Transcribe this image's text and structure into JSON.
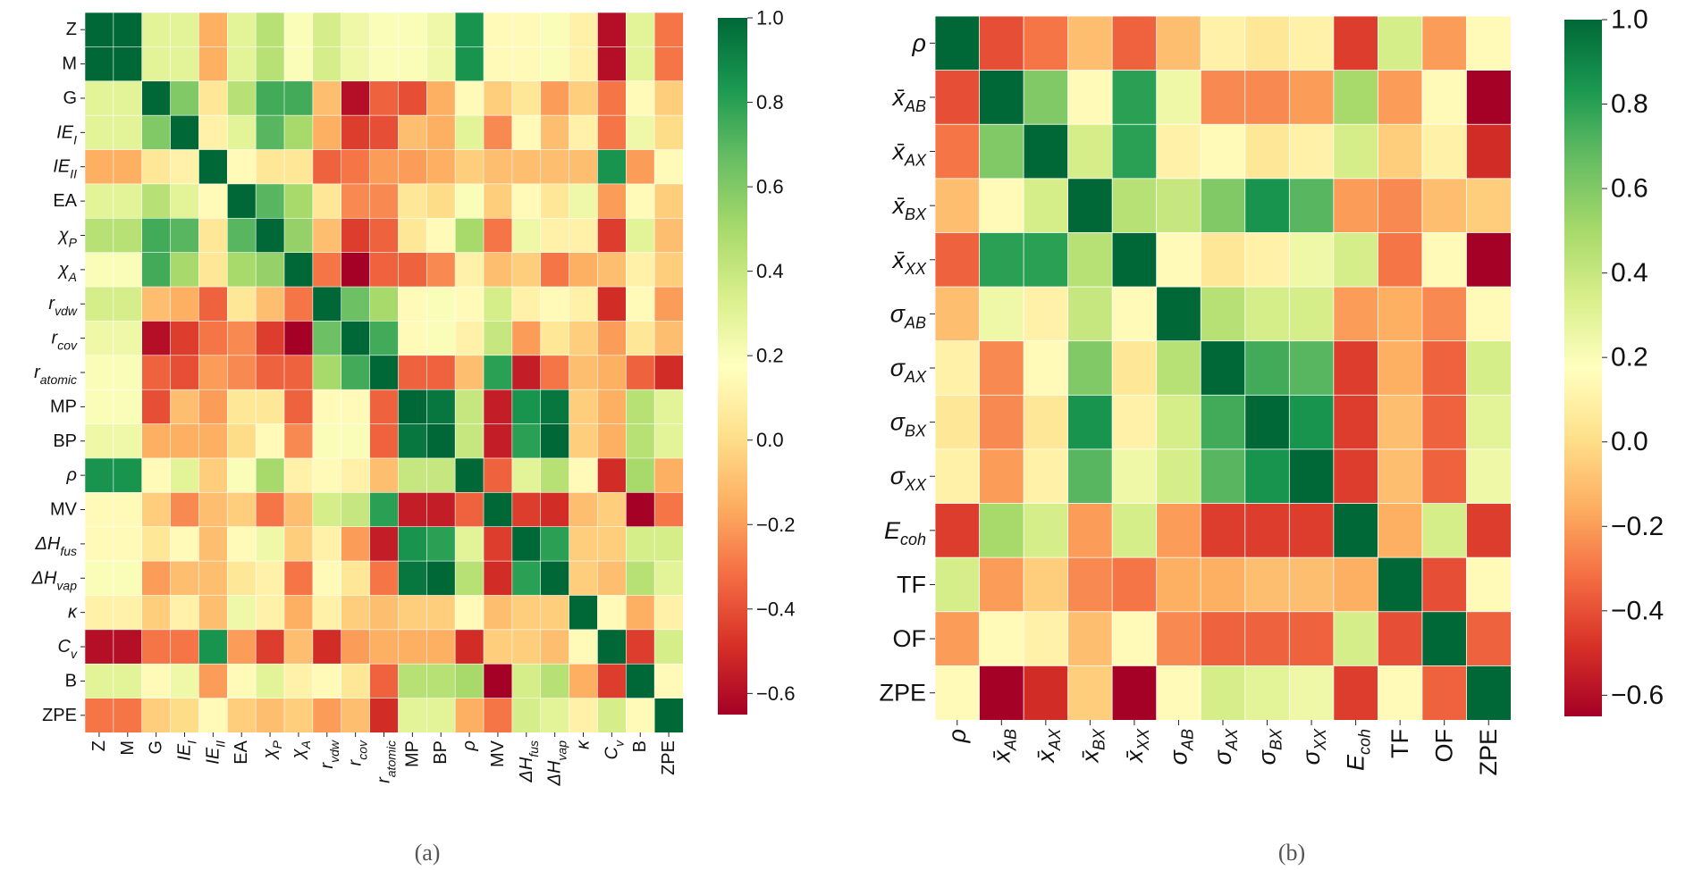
{
  "panels": [
    {
      "caption": "(a)"
    },
    {
      "caption": "(b)"
    }
  ],
  "chart_data": [
    {
      "type": "heatmap",
      "title": "",
      "colormap": "RdYlGn",
      "vmin": -0.65,
      "vmax": 1.0,
      "colorbar_ticks": [
        "1.0",
        "0.8",
        "0.6",
        "0.4",
        "0.2",
        "0.0",
        "−0.2",
        "−0.4",
        "−0.6"
      ],
      "colorbar_tick_values": [
        1.0,
        0.8,
        0.6,
        0.4,
        0.2,
        0.0,
        -0.2,
        -0.4,
        -0.6
      ],
      "labels": [
        {
          "b": "Z",
          "s": ""
        },
        {
          "b": "M",
          "s": ""
        },
        {
          "b": "G",
          "s": ""
        },
        {
          "b": "IE",
          "s": "I",
          "it": true
        },
        {
          "b": "IE",
          "s": "II",
          "it": true
        },
        {
          "b": "EA",
          "s": ""
        },
        {
          "b": "χ",
          "s": "P",
          "it": true
        },
        {
          "b": "χ",
          "s": "A",
          "it": true
        },
        {
          "b": "r",
          "s": "vdw",
          "it": true
        },
        {
          "b": "r",
          "s": "cov",
          "it": true
        },
        {
          "b": "r",
          "s": "atomic",
          "it": true
        },
        {
          "b": "MP",
          "s": ""
        },
        {
          "b": "BP",
          "s": ""
        },
        {
          "b": "ρ",
          "s": "",
          "it": true
        },
        {
          "b": "MV",
          "s": ""
        },
        {
          "b": "ΔH",
          "s": "fus",
          "it": true
        },
        {
          "b": "ΔH",
          "s": "vap",
          "it": true
        },
        {
          "b": "κ",
          "s": "",
          "it": true
        },
        {
          "b": "C",
          "s": "v",
          "it": true
        },
        {
          "b": "B",
          "s": ""
        },
        {
          "b": "ZPE",
          "s": ""
        }
      ],
      "matrix": [
        [
          1.0,
          1.0,
          0.3,
          0.3,
          -0.15,
          0.3,
          0.45,
          0.2,
          0.35,
          0.25,
          0.2,
          0.2,
          0.25,
          0.85,
          0.15,
          0.15,
          0.2,
          0.1,
          -0.6,
          0.3,
          -0.3
        ],
        [
          1.0,
          1.0,
          0.3,
          0.3,
          -0.15,
          0.3,
          0.45,
          0.2,
          0.35,
          0.25,
          0.2,
          0.2,
          0.25,
          0.85,
          0.15,
          0.15,
          0.2,
          0.1,
          -0.6,
          0.3,
          -0.3
        ],
        [
          0.3,
          0.3,
          1.0,
          0.6,
          0.05,
          0.45,
          0.75,
          0.75,
          -0.1,
          -0.6,
          -0.35,
          -0.4,
          -0.15,
          0.15,
          -0.05,
          0.05,
          -0.2,
          -0.05,
          -0.3,
          0.15,
          -0.05
        ],
        [
          0.3,
          0.3,
          0.6,
          1.0,
          0.1,
          0.3,
          0.7,
          0.5,
          -0.15,
          -0.45,
          -0.4,
          -0.1,
          -0.15,
          0.3,
          -0.25,
          0.15,
          -0.1,
          0.1,
          -0.3,
          0.25,
          0.0
        ],
        [
          -0.15,
          -0.15,
          0.05,
          0.1,
          1.0,
          0.15,
          0.05,
          0.05,
          -0.35,
          -0.3,
          -0.2,
          -0.2,
          -0.15,
          -0.05,
          -0.1,
          -0.1,
          -0.1,
          -0.1,
          0.85,
          -0.2,
          0.15
        ],
        [
          0.3,
          0.3,
          0.45,
          0.3,
          0.15,
          1.0,
          0.7,
          0.5,
          0.05,
          -0.25,
          -0.25,
          0.05,
          0.0,
          0.2,
          -0.05,
          0.15,
          0.05,
          0.25,
          -0.2,
          0.15,
          -0.05
        ],
        [
          0.45,
          0.45,
          0.75,
          0.7,
          0.05,
          0.7,
          1.0,
          0.55,
          -0.1,
          -0.45,
          -0.35,
          0.05,
          0.15,
          0.5,
          -0.3,
          0.25,
          0.1,
          0.1,
          -0.45,
          0.3,
          -0.1
        ],
        [
          0.2,
          0.2,
          0.75,
          0.5,
          0.05,
          0.5,
          0.55,
          1.0,
          -0.3,
          -0.65,
          -0.35,
          -0.35,
          -0.25,
          0.1,
          -0.1,
          -0.05,
          -0.3,
          -0.15,
          -0.1,
          0.1,
          -0.05
        ],
        [
          0.35,
          0.35,
          -0.1,
          -0.15,
          -0.35,
          0.05,
          -0.1,
          -0.3,
          1.0,
          0.65,
          0.5,
          0.15,
          0.2,
          0.15,
          0.35,
          0.1,
          0.15,
          0.1,
          -0.5,
          0.15,
          -0.2
        ],
        [
          0.25,
          0.25,
          -0.6,
          -0.45,
          -0.3,
          -0.25,
          -0.45,
          -0.65,
          0.65,
          1.0,
          0.75,
          0.15,
          0.2,
          0.1,
          0.4,
          -0.2,
          0.05,
          -0.05,
          -0.2,
          0.05,
          -0.1
        ],
        [
          0.2,
          0.2,
          -0.35,
          -0.4,
          -0.2,
          -0.25,
          -0.35,
          -0.35,
          0.5,
          0.75,
          1.0,
          -0.35,
          -0.35,
          -0.1,
          0.8,
          -0.55,
          -0.3,
          -0.1,
          -0.15,
          -0.35,
          -0.5
        ],
        [
          0.2,
          0.2,
          -0.4,
          -0.1,
          -0.2,
          0.05,
          0.05,
          -0.35,
          0.15,
          0.15,
          -0.35,
          1.0,
          0.95,
          0.4,
          -0.55,
          0.85,
          0.95,
          -0.05,
          -0.15,
          0.45,
          0.3
        ],
        [
          0.25,
          0.25,
          -0.15,
          -0.15,
          -0.15,
          0.0,
          0.15,
          -0.25,
          0.2,
          0.2,
          -0.35,
          0.95,
          1.0,
          0.4,
          -0.55,
          0.8,
          1.0,
          -0.05,
          -0.15,
          0.45,
          0.3
        ],
        [
          0.85,
          0.85,
          0.15,
          0.3,
          -0.05,
          0.2,
          0.5,
          0.1,
          0.15,
          0.1,
          -0.1,
          0.4,
          0.4,
          1.0,
          -0.35,
          0.3,
          0.45,
          0.15,
          -0.5,
          0.5,
          -0.15
        ],
        [
          0.15,
          0.15,
          -0.05,
          -0.25,
          -0.1,
          -0.05,
          -0.3,
          -0.1,
          0.35,
          0.4,
          0.8,
          -0.55,
          -0.55,
          -0.35,
          1.0,
          -0.45,
          -0.5,
          -0.1,
          -0.05,
          -0.65,
          -0.3
        ],
        [
          0.15,
          0.15,
          0.05,
          0.15,
          -0.1,
          0.15,
          0.25,
          -0.05,
          0.1,
          -0.2,
          -0.55,
          0.85,
          0.8,
          0.3,
          -0.45,
          1.0,
          0.8,
          -0.05,
          -0.05,
          0.35,
          0.35
        ],
        [
          0.2,
          0.2,
          -0.2,
          -0.1,
          -0.1,
          0.05,
          0.1,
          -0.3,
          0.15,
          0.05,
          -0.3,
          0.95,
          1.0,
          0.45,
          -0.5,
          0.8,
          1.0,
          -0.05,
          -0.1,
          0.45,
          0.3
        ],
        [
          0.1,
          0.1,
          -0.05,
          0.1,
          -0.1,
          0.25,
          0.1,
          -0.15,
          0.1,
          -0.05,
          -0.1,
          -0.05,
          -0.05,
          0.15,
          -0.1,
          -0.05,
          -0.05,
          1.0,
          0.15,
          -0.15,
          0.1
        ],
        [
          -0.6,
          -0.6,
          -0.3,
          -0.3,
          0.85,
          -0.2,
          -0.45,
          -0.1,
          -0.5,
          -0.2,
          -0.15,
          -0.15,
          -0.15,
          -0.5,
          -0.05,
          -0.05,
          -0.1,
          0.15,
          1.0,
          -0.45,
          0.35
        ],
        [
          0.3,
          0.3,
          0.15,
          0.25,
          -0.2,
          0.15,
          0.3,
          0.1,
          0.15,
          0.05,
          -0.35,
          0.45,
          0.45,
          0.5,
          -0.65,
          0.35,
          0.45,
          -0.15,
          -0.45,
          1.0,
          0.15
        ],
        [
          -0.3,
          -0.3,
          -0.05,
          0.0,
          0.15,
          -0.05,
          -0.1,
          -0.05,
          -0.2,
          -0.1,
          -0.5,
          0.3,
          0.3,
          -0.15,
          -0.3,
          0.35,
          0.3,
          0.1,
          0.35,
          0.15,
          1.0
        ]
      ]
    },
    {
      "type": "heatmap",
      "title": "",
      "colormap": "RdYlGn",
      "vmin": -0.65,
      "vmax": 1.0,
      "colorbar_ticks": [
        "1.0",
        "0.8",
        "0.6",
        "0.4",
        "0.2",
        "0.0",
        "−0.2",
        "−0.4",
        "−0.6"
      ],
      "colorbar_tick_values": [
        1.0,
        0.8,
        0.6,
        0.4,
        0.2,
        0.0,
        -0.2,
        -0.4,
        -0.6
      ],
      "labels": [
        {
          "b": "ρ",
          "s": "",
          "it": true
        },
        {
          "b": "x̄",
          "s": "AB",
          "it": true
        },
        {
          "b": "x̄",
          "s": "AX",
          "it": true
        },
        {
          "b": "x̄",
          "s": "BX",
          "it": true
        },
        {
          "b": "x̄",
          "s": "XX",
          "it": true
        },
        {
          "b": "σ",
          "s": "AB",
          "it": true
        },
        {
          "b": "σ",
          "s": "AX",
          "it": true
        },
        {
          "b": "σ",
          "s": "BX",
          "it": true
        },
        {
          "b": "σ",
          "s": "XX",
          "it": true
        },
        {
          "b": "E",
          "s": "coh",
          "it": true
        },
        {
          "b": "TF",
          "s": ""
        },
        {
          "b": "OF",
          "s": ""
        },
        {
          "b": "ZPE",
          "s": ""
        }
      ],
      "matrix": [
        [
          1.0,
          -0.4,
          -0.3,
          -0.1,
          -0.35,
          -0.1,
          0.1,
          0.05,
          0.1,
          -0.45,
          0.35,
          -0.2,
          0.15
        ],
        [
          -0.4,
          1.0,
          0.6,
          0.15,
          0.8,
          0.25,
          -0.25,
          -0.25,
          -0.2,
          0.5,
          -0.2,
          0.15,
          -0.65
        ],
        [
          -0.3,
          0.6,
          1.0,
          0.35,
          0.8,
          0.1,
          0.15,
          0.05,
          0.1,
          0.35,
          -0.05,
          0.1,
          -0.5
        ],
        [
          -0.1,
          0.15,
          0.35,
          1.0,
          0.45,
          0.4,
          0.6,
          0.85,
          0.7,
          -0.2,
          -0.25,
          -0.1,
          -0.05
        ],
        [
          -0.35,
          0.8,
          0.8,
          0.45,
          1.0,
          0.15,
          0.05,
          0.1,
          0.25,
          0.35,
          -0.3,
          0.15,
          -0.65
        ],
        [
          -0.1,
          0.25,
          0.1,
          0.4,
          0.15,
          1.0,
          0.45,
          0.35,
          0.35,
          -0.2,
          -0.15,
          -0.25,
          0.15
        ],
        [
          0.1,
          -0.25,
          0.15,
          0.6,
          0.05,
          0.45,
          1.0,
          0.75,
          0.7,
          -0.45,
          -0.15,
          -0.35,
          0.35
        ],
        [
          0.05,
          -0.25,
          0.05,
          0.85,
          0.1,
          0.35,
          0.75,
          1.0,
          0.85,
          -0.45,
          -0.1,
          -0.35,
          0.3
        ],
        [
          0.1,
          -0.2,
          0.1,
          0.7,
          0.25,
          0.35,
          0.7,
          0.85,
          1.0,
          -0.45,
          -0.1,
          -0.35,
          0.25
        ],
        [
          -0.45,
          0.5,
          0.35,
          -0.2,
          0.35,
          -0.2,
          -0.45,
          -0.45,
          -0.45,
          1.0,
          -0.15,
          0.35,
          -0.45
        ],
        [
          0.35,
          -0.2,
          -0.05,
          -0.25,
          -0.3,
          -0.15,
          -0.15,
          -0.1,
          -0.1,
          -0.15,
          1.0,
          -0.4,
          0.15
        ],
        [
          -0.2,
          0.15,
          0.1,
          -0.1,
          0.15,
          -0.25,
          -0.35,
          -0.35,
          -0.35,
          0.35,
          -0.4,
          1.0,
          -0.35
        ],
        [
          0.15,
          -0.65,
          -0.5,
          -0.05,
          -0.65,
          0.15,
          0.35,
          0.3,
          0.25,
          -0.45,
          0.15,
          -0.35,
          1.0
        ]
      ]
    }
  ]
}
